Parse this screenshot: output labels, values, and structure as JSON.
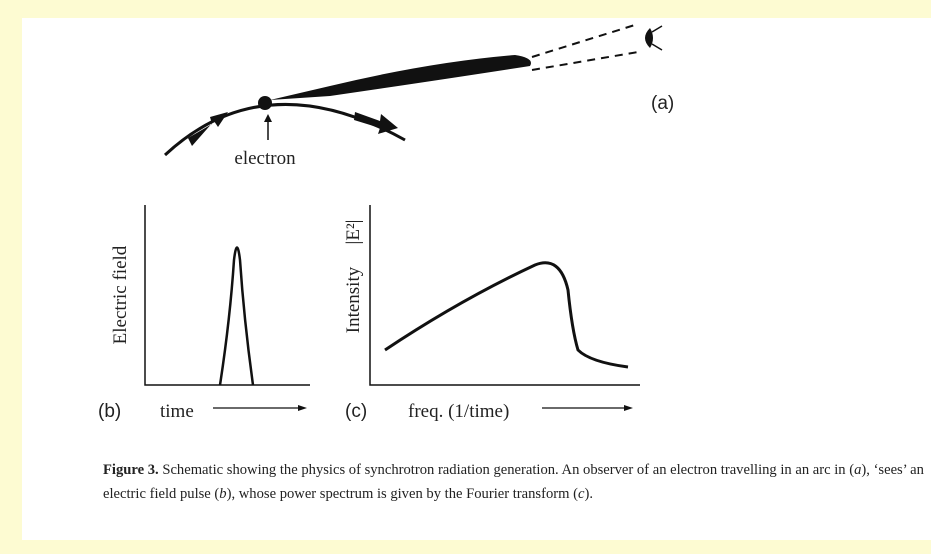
{
  "figure": {
    "panel_a": {
      "label": "(a)",
      "electron_label": "electron"
    },
    "panel_b": {
      "label": "(b)",
      "y_label": "Electric field",
      "x_label": "time"
    },
    "panel_c": {
      "label": "(c)",
      "y_label": "Intensity",
      "y_label_unit": "|E²|",
      "x_label": "freq. (1/time)"
    }
  },
  "caption": {
    "label": "Figure 3.",
    "parts": [
      "Schematic showing the physics of synchrotron radiation generation. An observer of an electron travelling in an arc in (",
      "a",
      "), ‘sees’ an electric field pulse (",
      "b",
      "), whose power spectrum is given by the Fourier transform (",
      "c",
      ")."
    ]
  }
}
